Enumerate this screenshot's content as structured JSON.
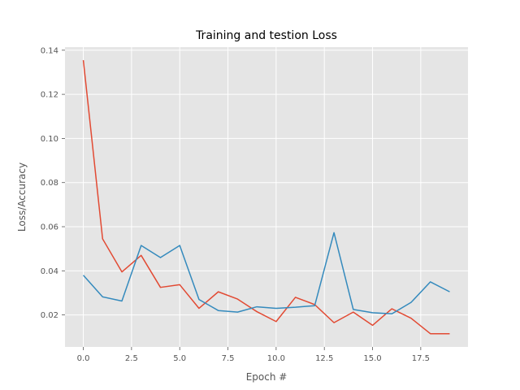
{
  "chart_data": {
    "type": "line",
    "title": "Training and testion Loss",
    "xlabel": "Epoch #",
    "ylabel": "Loss/Accuracy",
    "xlim": [
      -0.95,
      19.95
    ],
    "ylim": [
      0.0055,
      0.1414
    ],
    "xticks": [
      0.0,
      2.5,
      5.0,
      7.5,
      10.0,
      12.5,
      15.0,
      17.5
    ],
    "xtick_labels": [
      "0.0",
      "2.5",
      "5.0",
      "7.5",
      "10.0",
      "12.5",
      "15.0",
      "17.5"
    ],
    "yticks": [
      0.02,
      0.04,
      0.06,
      0.08,
      0.1,
      0.12,
      0.14
    ],
    "ytick_labels": [
      "0.02",
      "0.04",
      "0.06",
      "0.08",
      "0.10",
      "0.12",
      "0.14"
    ],
    "grid": true,
    "background": "#e5e5e5",
    "grid_color": "#ffffff",
    "x": [
      0,
      1,
      2,
      3,
      4,
      5,
      6,
      7,
      8,
      9,
      10,
      11,
      12,
      13,
      14,
      15,
      16,
      17,
      18,
      19
    ],
    "series": [
      {
        "color": "#e24a33",
        "values": [
          0.1355,
          0.0545,
          0.0395,
          0.047,
          0.0325,
          0.0337,
          0.023,
          0.0305,
          0.0272,
          0.0215,
          0.017,
          0.028,
          0.0247,
          0.0165,
          0.0213,
          0.0153,
          0.0228,
          0.0185,
          0.0115,
          0.0115
        ]
      },
      {
        "color": "#348abd",
        "values": [
          0.038,
          0.0282,
          0.0263,
          0.0515,
          0.046,
          0.0515,
          0.027,
          0.022,
          0.0213,
          0.0237,
          0.023,
          0.0235,
          0.0242,
          0.0573,
          0.0225,
          0.021,
          0.0205,
          0.0257,
          0.035,
          0.0305
        ]
      }
    ]
  }
}
